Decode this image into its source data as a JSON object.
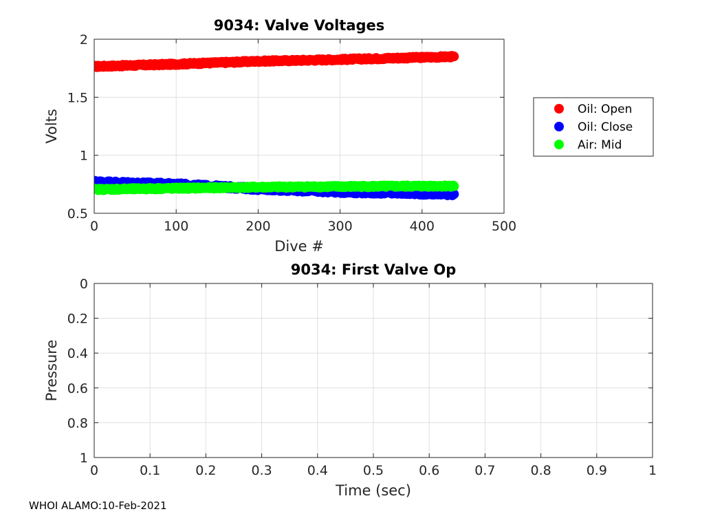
{
  "chart_data": [
    {
      "type": "scatter",
      "title": "9034: Valve Voltages",
      "xlabel": "Dive #",
      "ylabel": "Volts",
      "xlim": [
        0,
        500
      ],
      "ylim": [
        0.5,
        2
      ],
      "xticks": [
        0,
        100,
        200,
        300,
        400,
        500
      ],
      "yticks": [
        0.5,
        1,
        1.5,
        2
      ],
      "xtick_labels": [
        "0",
        "100",
        "200",
        "300",
        "400",
        "500"
      ],
      "ytick_labels": [
        "0.5",
        "1",
        "1.5",
        "2"
      ],
      "grid": true,
      "legend_position": "outside-right",
      "series": [
        {
          "name": "Oil: Open",
          "color": "#ff0000",
          "x_start": 1,
          "x_end": 439,
          "trend": [
            [
              1,
              1.765
            ],
            [
              100,
              1.785
            ],
            [
              200,
              1.81
            ],
            [
              300,
              1.825
            ],
            [
              439,
              1.85
            ]
          ],
          "jitter": 0.008
        },
        {
          "name": "Oil: Close",
          "color": "#0000ff",
          "x_start": 1,
          "x_end": 439,
          "trend": [
            [
              1,
              0.77
            ],
            [
              100,
              0.75
            ],
            [
              200,
              0.71
            ],
            [
              300,
              0.685
            ],
            [
              439,
              0.665
            ]
          ],
          "jitter": 0.012
        },
        {
          "name": "Air: Mid",
          "color": "#00ff00",
          "x_start": 1,
          "x_end": 439,
          "trend": [
            [
              1,
              0.705
            ],
            [
              100,
              0.715
            ],
            [
              200,
              0.725
            ],
            [
              300,
              0.73
            ],
            [
              439,
              0.735
            ]
          ],
          "jitter": 0.008
        }
      ]
    },
    {
      "type": "line",
      "title": "9034: First Valve Op",
      "xlabel": "Time (sec)",
      "ylabel": "Pressure",
      "xlim": [
        0,
        1
      ],
      "ylim": [
        0,
        1
      ],
      "y_reversed": true,
      "xticks": [
        0,
        0.1,
        0.2,
        0.3,
        0.4,
        0.5,
        0.6,
        0.7,
        0.8,
        0.9,
        1
      ],
      "yticks": [
        0,
        0.2,
        0.4,
        0.6,
        0.8,
        1
      ],
      "xtick_labels": [
        "0",
        "0.1",
        "0.2",
        "0.3",
        "0.4",
        "0.5",
        "0.6",
        "0.7",
        "0.8",
        "0.9",
        "1"
      ],
      "ytick_labels": [
        "0",
        "0.2",
        "0.4",
        "0.6",
        "0.8",
        "1"
      ],
      "grid": true,
      "series": []
    }
  ],
  "footer": "WHOI ALAMO:10-Feb-2021"
}
